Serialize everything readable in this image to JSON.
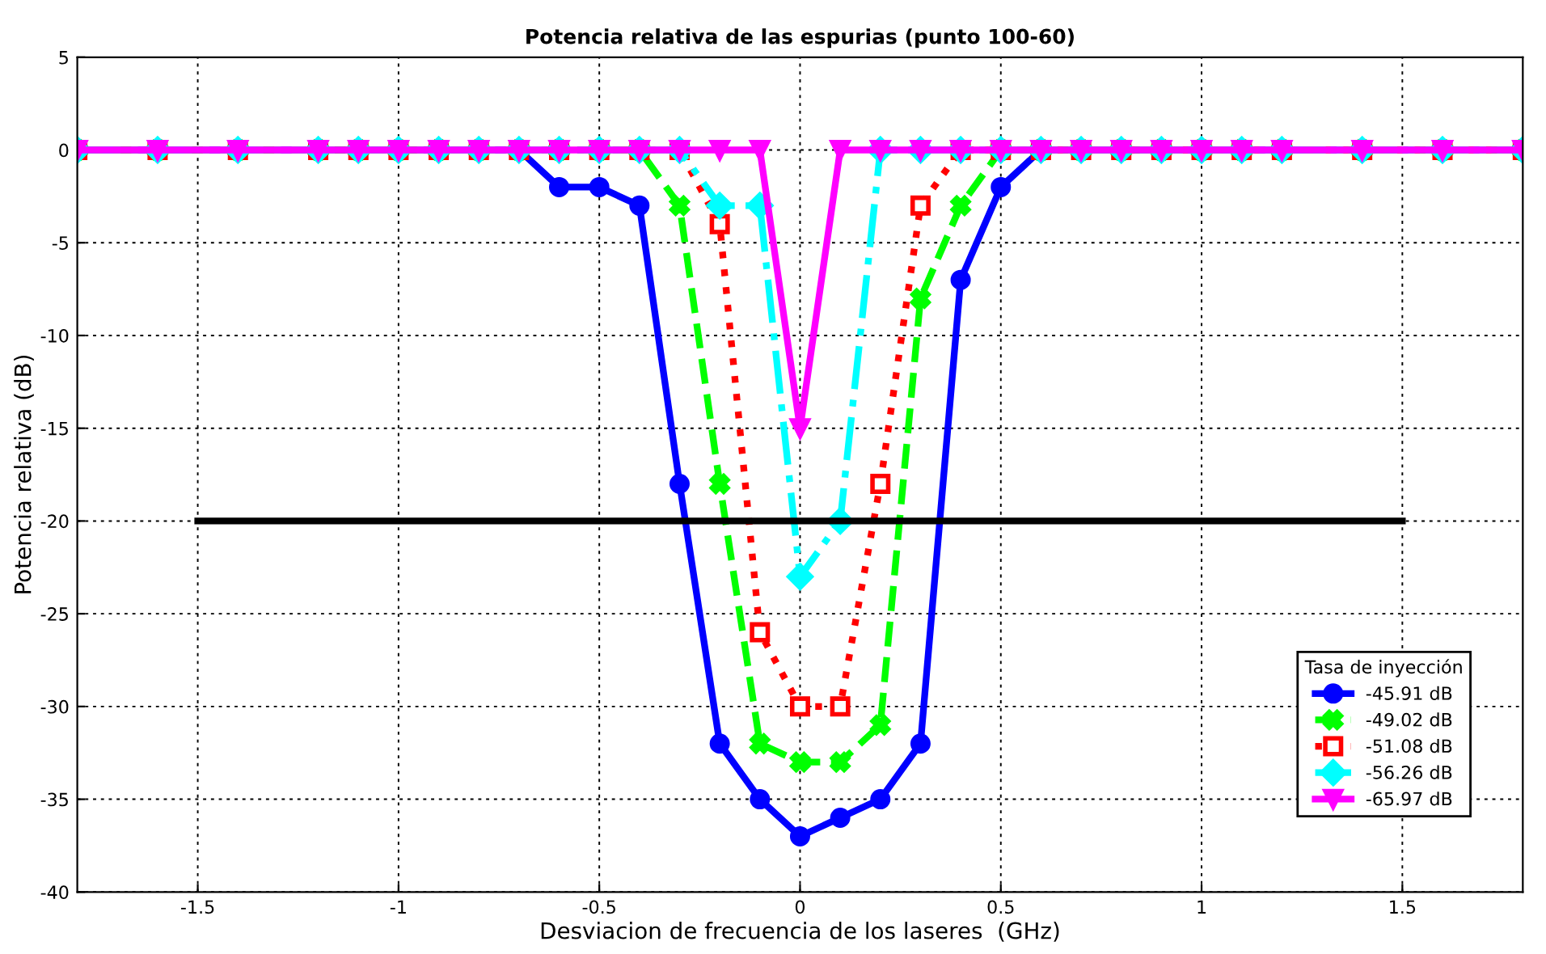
{
  "chart_data": {
    "type": "line",
    "title": "Potencia relativa de las espurias (punto 100-60)",
    "xlabel": "Desviacion de frecuencia de los laseres  (GHz)",
    "ylabel": "Potencia relativa (dB)",
    "legend_title": "Tasa de inyección",
    "legend": "bottom right",
    "grid": true,
    "x": [
      -1.8,
      -1.6,
      -1.4,
      -1.2,
      -1.1,
      -1.0,
      -0.9,
      -0.8,
      -0.7,
      -0.6,
      -0.5,
      -0.4,
      -0.3,
      -0.2,
      -0.1,
      0,
      0.1,
      0.2,
      0.3,
      0.4,
      0.5,
      0.6,
      0.7,
      0.8,
      0.9,
      1.0,
      1.1,
      1.2,
      1.4,
      1.6,
      1.8
    ],
    "xlim": [
      -1.8,
      1.8
    ],
    "xticks": [
      -1.5,
      -1,
      -0.5,
      0,
      0.5,
      1,
      1.5
    ],
    "ylim": [
      -40,
      5
    ],
    "yticks": [
      -40,
      -35,
      -30,
      -25,
      -20,
      -15,
      -10,
      -5,
      0,
      5
    ],
    "series": [
      {
        "name": "-45.91 dB",
        "color": "#0000ff",
        "marker": "circle",
        "line_style": "solid",
        "values": [
          0,
          0,
          0,
          0,
          0,
          0,
          0,
          0,
          0,
          -2,
          -2,
          -3,
          -18,
          -32,
          -35,
          -37,
          -36,
          -35,
          -32,
          -7,
          -2,
          0,
          0,
          0,
          0,
          0,
          0,
          0,
          0,
          0,
          0
        ]
      },
      {
        "name": "-49.02 dB",
        "color": "#00ff00",
        "marker": "cross",
        "line_style": "dashed",
        "values": [
          0,
          0,
          0,
          0,
          0,
          0,
          0,
          0,
          0,
          0,
          0,
          0,
          -3,
          -18,
          -32,
          -33,
          -33,
          -31,
          -8,
          -3,
          0,
          0,
          0,
          0,
          0,
          0,
          0,
          0,
          0,
          0,
          0
        ]
      },
      {
        "name": "-51.08 dB",
        "color": "#ff0000",
        "marker": "square",
        "line_style": "dotted",
        "values": [
          0,
          0,
          0,
          0,
          0,
          0,
          0,
          0,
          0,
          0,
          0,
          0,
          0,
          -4,
          -26,
          -30,
          -30,
          -18,
          -3,
          0,
          0,
          0,
          0,
          0,
          0,
          0,
          0,
          0,
          0,
          0,
          0
        ]
      },
      {
        "name": "-56.26 dB",
        "color": "#00ffff",
        "marker": "diamond",
        "line_style": "dashdot",
        "values": [
          0,
          0,
          0,
          0,
          0,
          0,
          0,
          0,
          0,
          0,
          0,
          0,
          0,
          -3,
          -3,
          -23,
          -20,
          0,
          0,
          0,
          0,
          0,
          0,
          0,
          0,
          0,
          0,
          0,
          0,
          0,
          0
        ]
      },
      {
        "name": "-65.97 dB",
        "color": "#ff00ff",
        "marker": "triangle-down",
        "line_style": "solid",
        "values": [
          0,
          0,
          0,
          0,
          0,
          0,
          0,
          0,
          0,
          0,
          0,
          0,
          0,
          0,
          0,
          -15,
          0,
          0,
          0,
          0,
          0,
          0,
          0,
          0,
          0,
          0,
          0,
          0,
          0,
          0,
          0
        ]
      },
      {
        "color": "#000000",
        "marker": "none",
        "line_style": "solid",
        "x": [
          -1.5,
          1.5
        ],
        "values": [
          -20,
          -20
        ]
      }
    ]
  }
}
